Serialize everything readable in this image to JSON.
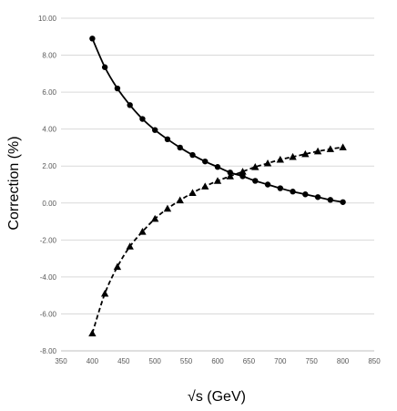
{
  "chart_data": {
    "type": "scatter",
    "title": "",
    "xlabel": "√s (GeV)",
    "ylabel": "Correction (%)",
    "xlim": [
      350,
      850
    ],
    "ylim": [
      -8.0,
      10.0
    ],
    "x_ticks": [
      350,
      400,
      450,
      500,
      550,
      600,
      650,
      700,
      750,
      800,
      850
    ],
    "y_ticks": [
      -8.0,
      -6.0,
      -4.0,
      -2.0,
      0.0,
      2.0,
      4.0,
      6.0,
      8.0,
      10.0
    ],
    "x_tick_labels": [
      "350",
      "400",
      "450",
      "500",
      "550",
      "600",
      "650",
      "700",
      "750",
      "800",
      "850"
    ],
    "y_tick_labels": [
      "-8.00",
      "-6.00",
      "-4.00",
      "-2.00",
      "0.00",
      "2.00",
      "4.00",
      "6.00",
      "8.00",
      "10.00"
    ],
    "grid": "horizontal",
    "legend": "none",
    "series": [
      {
        "marker": "circle",
        "line": "solid",
        "color": "#000000",
        "x": [
          400,
          420,
          440,
          460,
          480,
          500,
          520,
          540,
          560,
          580,
          600,
          620,
          640,
          660,
          680,
          700,
          720,
          740,
          760,
          780,
          800
        ],
        "y": [
          8.9,
          7.35,
          6.2,
          5.3,
          4.55,
          3.95,
          3.45,
          3.0,
          2.6,
          2.25,
          1.95,
          1.65,
          1.45,
          1.2,
          1.0,
          0.8,
          0.62,
          0.47,
          0.32,
          0.17,
          0.05
        ]
      },
      {
        "marker": "triangle",
        "line": "dashed",
        "color": "#000000",
        "x": [
          400,
          420,
          440,
          460,
          480,
          500,
          520,
          540,
          560,
          580,
          600,
          620,
          640,
          660,
          680,
          700,
          720,
          740,
          760,
          780,
          800
        ],
        "y": [
          -7.05,
          -4.9,
          -3.45,
          -2.35,
          -1.55,
          -0.85,
          -0.3,
          0.15,
          0.55,
          0.9,
          1.2,
          1.45,
          1.7,
          1.95,
          2.15,
          2.35,
          2.5,
          2.65,
          2.8,
          2.92,
          3.02
        ]
      }
    ]
  }
}
